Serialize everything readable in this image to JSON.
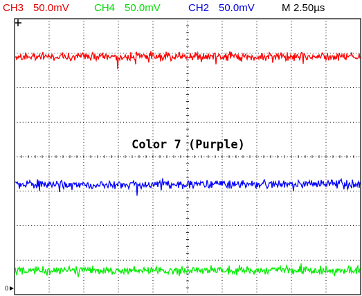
{
  "header": {
    "ch3": {
      "label": "CH3",
      "scale": "50.0mV",
      "color": "#e00000"
    },
    "ch4": {
      "label": "CH4",
      "scale": "50.0mV",
      "color": "#00dd00"
    },
    "ch2": {
      "label": "CH2",
      "scale": "50.0mV",
      "color": "#0000dd"
    },
    "timebase": {
      "label": "M",
      "value": "2.50µs",
      "color": "#000000"
    }
  },
  "chart_data": {
    "type": "line",
    "title": "",
    "xlabel": "",
    "ylabel": "",
    "x_divisions": 10,
    "y_divisions": 8,
    "grid": true,
    "annotation": "Color 7 (Purple)",
    "ground_marker": "0",
    "series": [
      {
        "name": "CH3",
        "color": "#ff0000",
        "level_div": 6.9,
        "noise_div": 0.18
      },
      {
        "name": "CH2",
        "color": "#0000ff",
        "level_div": 3.2,
        "noise_div": 0.18
      },
      {
        "name": "CH4",
        "color": "#00ee00",
        "level_div": 0.7,
        "noise_div": 0.18
      }
    ]
  }
}
